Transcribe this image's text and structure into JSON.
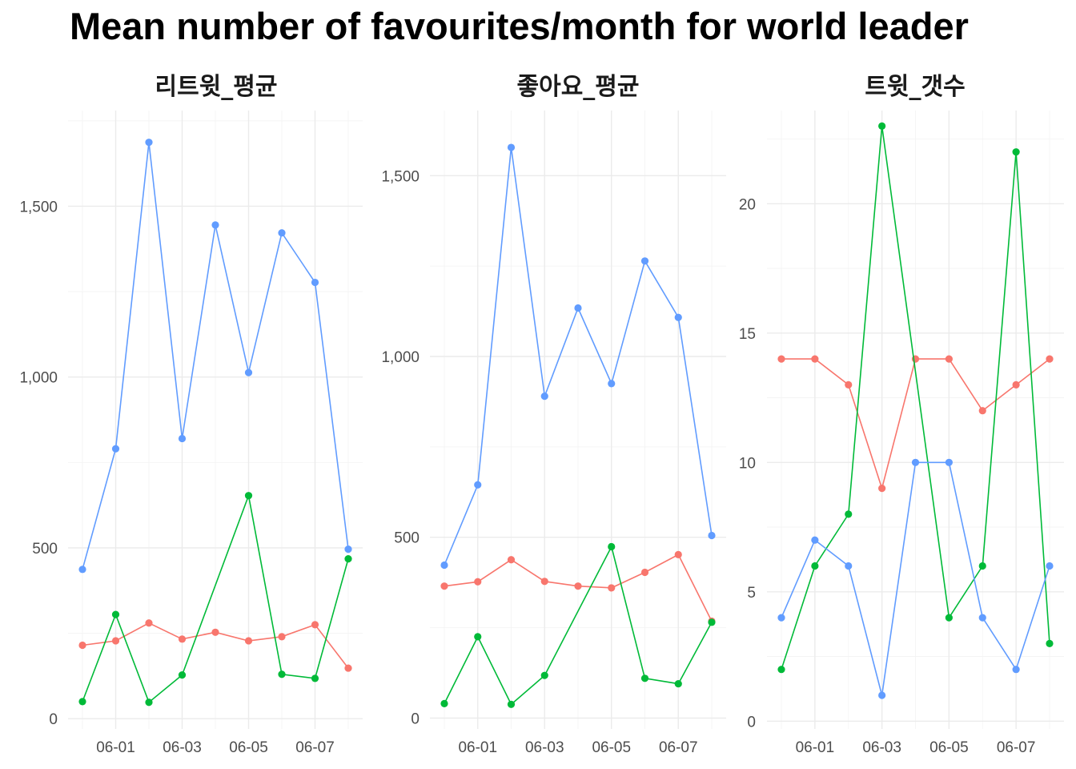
{
  "title": "Mean number of favourites/month for world leader",
  "colors": {
    "red": "#F8766D",
    "green": "#00BA38",
    "blue": "#619CFF"
  },
  "chart_data": [
    {
      "type": "line",
      "facet": "리트윗_평균",
      "x": [
        "05-31",
        "06-01",
        "06-02",
        "06-03",
        "06-04",
        "06-05",
        "06-06",
        "06-07",
        "06-08"
      ],
      "xticks": [
        "06-01",
        "06-03",
        "06-05",
        "06-07"
      ],
      "yticks": [
        0,
        500,
        1000,
        1500
      ],
      "ytick_labels": [
        "0",
        "500",
        "1,000",
        "1,500"
      ],
      "ylim": [
        -30,
        1780
      ],
      "grid": true,
      "series": [
        {
          "color": "#F8766D",
          "values": [
            215,
            228,
            280,
            233,
            253,
            228,
            240,
            275,
            148
          ]
        },
        {
          "color": "#00BA38",
          "values": [
            50,
            305,
            48,
            128,
            null,
            653,
            130,
            118,
            468
          ]
        },
        {
          "color": "#619CFF",
          "values": [
            437,
            790,
            1687,
            820,
            1445,
            1013,
            1422,
            1277,
            496
          ]
        }
      ]
    },
    {
      "type": "line",
      "facet": "좋아요_평균",
      "x": [
        "05-31",
        "06-01",
        "06-02",
        "06-03",
        "06-04",
        "06-05",
        "06-06",
        "06-07",
        "06-08"
      ],
      "xticks": [
        "06-01",
        "06-03",
        "06-05",
        "06-07"
      ],
      "yticks": [
        0,
        500,
        1000,
        1500
      ],
      "ytick_labels": [
        "0",
        "500",
        "1,000",
        "1,500"
      ],
      "ylim": [
        -30,
        1680
      ],
      "grid": true,
      "series": [
        {
          "color": "#F8766D",
          "values": [
            365,
            377,
            438,
            378,
            365,
            360,
            403,
            452,
            268
          ]
        },
        {
          "color": "#00BA38",
          "values": [
            40,
            225,
            38,
            118,
            null,
            474,
            110,
            95,
            265
          ]
        },
        {
          "color": "#619CFF",
          "values": [
            423,
            645,
            1578,
            890,
            1134,
            925,
            1264,
            1108,
            505
          ]
        }
      ]
    },
    {
      "type": "line",
      "facet": "트윗_갯수",
      "x": [
        "05-31",
        "06-01",
        "06-02",
        "06-03",
        "06-04",
        "06-05",
        "06-06",
        "06-07",
        "06-08"
      ],
      "xticks": [
        "06-01",
        "06-03",
        "06-05",
        "06-07"
      ],
      "yticks": [
        0,
        5,
        10,
        15,
        20
      ],
      "ytick_labels": [
        "0",
        "5",
        "10",
        "15",
        "20"
      ],
      "ylim": [
        -0.3,
        23.6
      ],
      "grid": true,
      "series": [
        {
          "color": "#F8766D",
          "values": [
            14,
            14,
            13,
            9,
            14,
            14,
            12,
            13,
            14
          ]
        },
        {
          "color": "#00BA38",
          "values": [
            2,
            6,
            8,
            23,
            null,
            4,
            6,
            22,
            3
          ]
        },
        {
          "color": "#619CFF",
          "values": [
            4,
            7,
            6,
            1,
            10,
            10,
            4,
            2,
            6
          ]
        }
      ]
    }
  ]
}
